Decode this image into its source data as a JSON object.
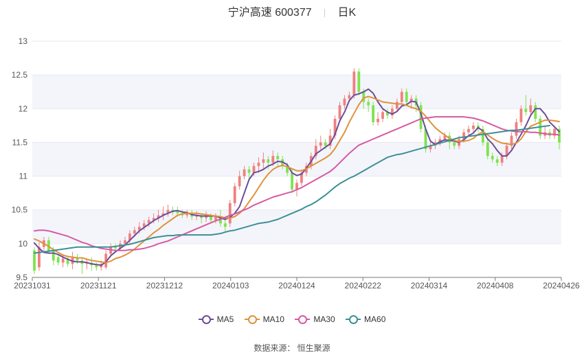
{
  "header": {
    "stock_name": "宁沪高速 600377",
    "period": "日K"
  },
  "source": "数据来源： 恒生聚源",
  "colors": {
    "up": "#f08080",
    "down": "#7ee34f",
    "ma5": "#6b4c9a",
    "ma10": "#e0913a",
    "ma30": "#d65aa3",
    "ma60": "#3c8f96",
    "grid_band": "#f3f5fa"
  },
  "chart_data": {
    "type": "candlestick",
    "title": "宁沪高速 600377",
    "period_label": "日K",
    "y_ticks": [
      "9.5",
      "10",
      "10.5",
      "11",
      "11.5",
      "12",
      "12.5",
      "13"
    ],
    "ylim": [
      9.5,
      13
    ],
    "x_ticks": [
      "20231031",
      "20231121",
      "20231212",
      "20240103",
      "20240124",
      "20240222",
      "20240314",
      "20240408",
      "20240426"
    ],
    "grid": true,
    "legend_position": "bottom",
    "series": [
      {
        "name": "MA5",
        "color": "#6b4c9a",
        "values": [
          10.01,
          9.93,
          9.87,
          9.86,
          9.86,
          9.84,
          9.8,
          9.77,
          9.74,
          9.73,
          9.73,
          9.72,
          9.7,
          9.69,
          9.68,
          9.73,
          9.82,
          9.88,
          9.93,
          9.98,
          10.05,
          10.12,
          10.19,
          10.24,
          10.29,
          10.34,
          10.38,
          10.42,
          10.45,
          10.48,
          10.49,
          10.47,
          10.46,
          10.43,
          10.42,
          10.41,
          10.41,
          10.41,
          10.41,
          10.38,
          10.36,
          10.39,
          10.45,
          10.55,
          10.75,
          10.95,
          11.05,
          11.07,
          11.1,
          11.15,
          11.18,
          11.22,
          11.21,
          11.17,
          11.05,
          11.01,
          11.03,
          11.12,
          11.22,
          11.33,
          11.38,
          11.43,
          11.48,
          11.62,
          11.82,
          11.95,
          12.12,
          12.2,
          12.22,
          12.25,
          12.29,
          12.23,
          12.1,
          12.0,
          11.95,
          11.92,
          11.96,
          12.04,
          12.06,
          12.11,
          12.1,
          11.93,
          11.7,
          11.52,
          11.47,
          11.51,
          11.54,
          11.53,
          11.52,
          11.5,
          11.54,
          11.6,
          11.64,
          11.72,
          11.67,
          11.55,
          11.48,
          11.38,
          11.3,
          11.3,
          11.38,
          11.5,
          11.62,
          11.75,
          11.9,
          12.0,
          12.0,
          11.92,
          11.8,
          11.73,
          11.66
        ]
      },
      {
        "name": "MA10",
        "color": "#e0913a",
        "values": [
          10.07,
          10.04,
          10.0,
          9.96,
          9.91,
          9.87,
          9.83,
          9.81,
          9.8,
          9.79,
          9.79,
          9.77,
          9.75,
          9.74,
          9.73,
          9.72,
          9.74,
          9.78,
          9.8,
          9.83,
          9.87,
          9.92,
          9.98,
          10.04,
          10.1,
          10.16,
          10.21,
          10.27,
          10.32,
          10.37,
          10.42,
          10.44,
          10.45,
          10.45,
          10.45,
          10.44,
          10.43,
          10.42,
          10.41,
          10.4,
          10.38,
          10.38,
          10.4,
          10.45,
          10.52,
          10.62,
          10.72,
          10.83,
          10.94,
          11.03,
          11.1,
          11.14,
          11.16,
          11.14,
          11.11,
          11.08,
          11.08,
          11.11,
          11.15,
          11.19,
          11.23,
          11.27,
          11.32,
          11.41,
          11.53,
          11.65,
          11.8,
          11.93,
          12.06,
          12.16,
          12.18,
          12.16,
          12.13,
          12.1,
          12.09,
          12.08,
          12.07,
          12.07,
          12.05,
          12.02,
          12.0,
          11.96,
          11.89,
          11.8,
          11.72,
          11.66,
          11.61,
          11.56,
          11.53,
          11.51,
          11.52,
          11.53,
          11.56,
          11.62,
          11.66,
          11.61,
          11.56,
          11.52,
          11.49,
          11.48,
          11.47,
          11.49,
          11.55,
          11.66,
          11.74,
          11.77,
          11.8,
          11.83,
          11.83,
          11.82,
          11.81
        ]
      },
      {
        "name": "MA30",
        "color": "#d65aa3",
        "values": [
          10.19,
          10.2,
          10.2,
          10.19,
          10.17,
          10.15,
          10.13,
          10.11,
          10.08,
          10.05,
          10.02,
          10.0,
          9.97,
          9.95,
          9.93,
          9.92,
          9.91,
          9.9,
          9.9,
          9.9,
          9.91,
          9.91,
          9.92,
          9.93,
          9.95,
          9.97,
          10.0,
          10.02,
          10.04,
          10.07,
          10.1,
          10.13,
          10.16,
          10.19,
          10.22,
          10.25,
          10.28,
          10.31,
          10.34,
          10.36,
          10.39,
          10.42,
          10.44,
          10.47,
          10.5,
          10.53,
          10.57,
          10.6,
          10.63,
          10.66,
          10.69,
          10.71,
          10.73,
          10.75,
          10.77,
          10.8,
          10.83,
          10.87,
          10.91,
          10.95,
          10.99,
          11.03,
          11.07,
          11.13,
          11.2,
          11.27,
          11.34,
          11.4,
          11.46,
          11.49,
          11.52,
          11.55,
          11.58,
          11.61,
          11.64,
          11.67,
          11.7,
          11.73,
          11.76,
          11.79,
          11.82,
          11.85,
          11.86,
          11.87,
          11.88,
          11.88,
          11.88,
          11.88,
          11.88,
          11.88,
          11.88,
          11.87,
          11.86,
          11.84,
          11.82,
          11.79,
          11.76,
          11.73,
          11.7,
          11.68,
          11.67,
          11.66,
          11.66,
          11.66,
          11.65,
          11.65,
          11.64,
          11.63,
          11.62,
          11.62,
          11.61
        ]
      },
      {
        "name": "MA60",
        "color": "#3c8f96",
        "values": [
          9.86,
          9.87,
          9.88,
          9.89,
          9.9,
          9.91,
          9.92,
          9.93,
          9.94,
          9.95,
          9.95,
          9.95,
          9.95,
          9.95,
          9.95,
          9.95,
          9.95,
          9.96,
          9.97,
          9.98,
          9.99,
          10.01,
          10.03,
          10.05,
          10.07,
          10.09,
          10.1,
          10.11,
          10.12,
          10.12,
          10.13,
          10.13,
          10.13,
          10.13,
          10.13,
          10.13,
          10.13,
          10.13,
          10.14,
          10.15,
          10.17,
          10.19,
          10.2,
          10.22,
          10.24,
          10.26,
          10.28,
          10.3,
          10.31,
          10.32,
          10.34,
          10.36,
          10.39,
          10.42,
          10.45,
          10.48,
          10.51,
          10.55,
          10.58,
          10.62,
          10.67,
          10.72,
          10.78,
          10.84,
          10.89,
          10.93,
          10.97,
          11.0,
          11.04,
          11.08,
          11.12,
          11.16,
          11.2,
          11.24,
          11.28,
          11.3,
          11.32,
          11.33,
          11.35,
          11.37,
          11.39,
          11.41,
          11.43,
          11.45,
          11.47,
          11.49,
          11.51,
          11.53,
          11.55,
          11.57,
          11.58,
          11.59,
          11.6,
          11.61,
          11.62,
          11.63,
          11.64,
          11.65,
          11.66,
          11.67,
          11.68,
          11.68,
          11.69,
          11.7,
          11.71,
          11.72,
          11.73,
          11.74,
          11.75
        ]
      }
    ],
    "candles": {
      "fields": [
        "open",
        "close",
        "low",
        "high"
      ],
      "values": [
        [
          9.9,
          9.6,
          9.55,
          9.95
        ],
        [
          9.65,
          9.95,
          9.6,
          10.02
        ],
        [
          9.95,
          10.05,
          9.88,
          10.1
        ],
        [
          10.05,
          9.9,
          9.85,
          10.1
        ],
        [
          9.9,
          9.75,
          9.68,
          9.95
        ],
        [
          9.8,
          9.72,
          9.68,
          9.85
        ],
        [
          9.72,
          9.78,
          9.65,
          9.85
        ],
        [
          9.78,
          9.7,
          9.66,
          9.82
        ],
        [
          9.7,
          9.8,
          9.62,
          9.88
        ],
        [
          9.8,
          9.75,
          9.7,
          9.85
        ],
        [
          9.75,
          9.7,
          9.55,
          9.8
        ],
        [
          9.7,
          9.72,
          9.62,
          9.78
        ],
        [
          9.72,
          9.68,
          9.6,
          9.8
        ],
        [
          9.68,
          9.65,
          9.6,
          9.72
        ],
        [
          9.65,
          9.7,
          9.6,
          9.75
        ],
        [
          9.65,
          9.85,
          9.62,
          9.9
        ],
        [
          9.85,
          9.95,
          9.8,
          10.0
        ],
        [
          9.95,
          9.93,
          9.88,
          10.0
        ],
        [
          9.93,
          10.0,
          9.9,
          10.05
        ],
        [
          10.0,
          10.05,
          9.96,
          10.1
        ],
        [
          10.05,
          10.15,
          10.0,
          10.2
        ],
        [
          10.15,
          10.2,
          10.1,
          10.25
        ],
        [
          10.2,
          10.25,
          10.15,
          10.32
        ],
        [
          10.25,
          10.3,
          10.2,
          10.35
        ],
        [
          10.3,
          10.35,
          10.25,
          10.4
        ],
        [
          10.35,
          10.38,
          10.3,
          10.45
        ],
        [
          10.38,
          10.42,
          10.32,
          10.5
        ],
        [
          10.42,
          10.45,
          10.35,
          10.55
        ],
        [
          10.45,
          10.5,
          10.4,
          10.58
        ],
        [
          10.5,
          10.48,
          10.42,
          10.55
        ],
        [
          10.48,
          10.45,
          10.4,
          10.55
        ],
        [
          10.45,
          10.42,
          10.38,
          10.5
        ],
        [
          10.42,
          10.45,
          10.38,
          10.5
        ],
        [
          10.45,
          10.4,
          10.35,
          10.5
        ],
        [
          10.4,
          10.42,
          10.35,
          10.48
        ],
        [
          10.42,
          10.38,
          10.3,
          10.45
        ],
        [
          10.38,
          10.42,
          10.32,
          10.48
        ],
        [
          10.42,
          10.35,
          10.3,
          10.45
        ],
        [
          10.35,
          10.4,
          10.3,
          10.45
        ],
        [
          10.4,
          10.3,
          10.25,
          10.5
        ],
        [
          10.3,
          10.25,
          10.18,
          10.38
        ],
        [
          10.3,
          10.6,
          10.25,
          10.65
        ],
        [
          10.6,
          10.85,
          10.55,
          10.9
        ],
        [
          10.85,
          11.0,
          10.8,
          11.08
        ],
        [
          11.0,
          11.1,
          10.95,
          11.15
        ],
        [
          11.1,
          11.05,
          10.95,
          11.15
        ],
        [
          11.05,
          11.15,
          11.0,
          11.2
        ],
        [
          11.15,
          11.2,
          11.05,
          11.28
        ],
        [
          11.2,
          11.25,
          11.1,
          11.35
        ],
        [
          11.25,
          11.2,
          11.1,
          11.3
        ],
        [
          11.2,
          11.3,
          11.15,
          11.38
        ],
        [
          11.3,
          11.25,
          11.15,
          11.35
        ],
        [
          11.25,
          11.15,
          11.1,
          11.3
        ],
        [
          11.15,
          11.05,
          11.0,
          11.2
        ],
        [
          11.05,
          10.8,
          10.75,
          11.1
        ],
        [
          10.8,
          10.9,
          10.7,
          10.95
        ],
        [
          10.9,
          11.05,
          10.85,
          11.1
        ],
        [
          11.05,
          11.15,
          11.0,
          11.2
        ],
        [
          11.15,
          11.3,
          11.1,
          11.35
        ],
        [
          11.3,
          11.45,
          11.25,
          11.55
        ],
        [
          11.45,
          11.5,
          11.4,
          11.6
        ],
        [
          11.5,
          11.45,
          11.4,
          11.55
        ],
        [
          11.45,
          11.6,
          11.4,
          11.7
        ],
        [
          11.6,
          11.85,
          11.55,
          11.9
        ],
        [
          11.85,
          12.05,
          11.8,
          12.1
        ],
        [
          12.05,
          12.15,
          12.0,
          12.2
        ],
        [
          12.15,
          12.2,
          12.1,
          12.25
        ],
        [
          12.2,
          12.55,
          12.15,
          12.6
        ],
        [
          12.55,
          12.25,
          12.2,
          12.6
        ],
        [
          12.25,
          12.1,
          12.0,
          12.3
        ],
        [
          12.1,
          12.05,
          11.95,
          12.15
        ],
        [
          12.05,
          11.8,
          11.75,
          12.1
        ],
        [
          11.8,
          11.85,
          11.75,
          11.95
        ],
        [
          11.85,
          11.95,
          11.8,
          12.0
        ],
        [
          11.95,
          11.9,
          11.85,
          12.0
        ],
        [
          11.9,
          12.0,
          11.85,
          12.05
        ],
        [
          12.0,
          12.1,
          11.95,
          12.15
        ],
        [
          12.1,
          12.25,
          12.05,
          12.3
        ],
        [
          12.25,
          12.1,
          12.05,
          12.3
        ],
        [
          12.1,
          12.15,
          12.0,
          12.2
        ],
        [
          12.15,
          12.05,
          11.95,
          12.2
        ],
        [
          12.05,
          11.7,
          11.65,
          12.1
        ],
        [
          11.7,
          11.4,
          11.35,
          11.75
        ],
        [
          11.4,
          11.45,
          11.35,
          11.5
        ],
        [
          11.45,
          11.5,
          11.4,
          11.55
        ],
        [
          11.5,
          11.55,
          11.45,
          11.6
        ],
        [
          11.55,
          11.6,
          11.5,
          11.65
        ],
        [
          11.6,
          11.5,
          11.4,
          11.65
        ],
        [
          11.5,
          11.45,
          11.4,
          11.55
        ],
        [
          11.45,
          11.55,
          11.4,
          11.6
        ],
        [
          11.55,
          11.65,
          11.5,
          11.7
        ],
        [
          11.65,
          11.7,
          11.6,
          11.75
        ],
        [
          11.7,
          11.75,
          11.65,
          11.8
        ],
        [
          11.75,
          11.7,
          11.65,
          11.8
        ],
        [
          11.7,
          11.5,
          11.45,
          11.75
        ],
        [
          11.5,
          11.3,
          11.25,
          11.55
        ],
        [
          11.3,
          11.25,
          11.2,
          11.35
        ],
        [
          11.25,
          11.2,
          11.15,
          11.3
        ],
        [
          11.2,
          11.3,
          11.15,
          11.35
        ],
        [
          11.3,
          11.45,
          11.25,
          11.5
        ],
        [
          11.45,
          11.6,
          11.4,
          11.65
        ],
        [
          11.6,
          11.8,
          11.55,
          11.85
        ],
        [
          11.8,
          12.0,
          11.75,
          12.05
        ],
        [
          12.0,
          11.95,
          11.9,
          12.2
        ],
        [
          11.95,
          12.05,
          11.9,
          12.15
        ],
        [
          12.05,
          11.85,
          11.8,
          12.1
        ],
        [
          11.85,
          11.6,
          11.55,
          11.9
        ],
        [
          11.6,
          11.65,
          11.55,
          11.75
        ],
        [
          11.65,
          11.6,
          11.55,
          11.7
        ],
        [
          11.6,
          11.7,
          11.55,
          11.75
        ],
        [
          11.7,
          11.5,
          11.4,
          11.75
        ]
      ]
    }
  }
}
